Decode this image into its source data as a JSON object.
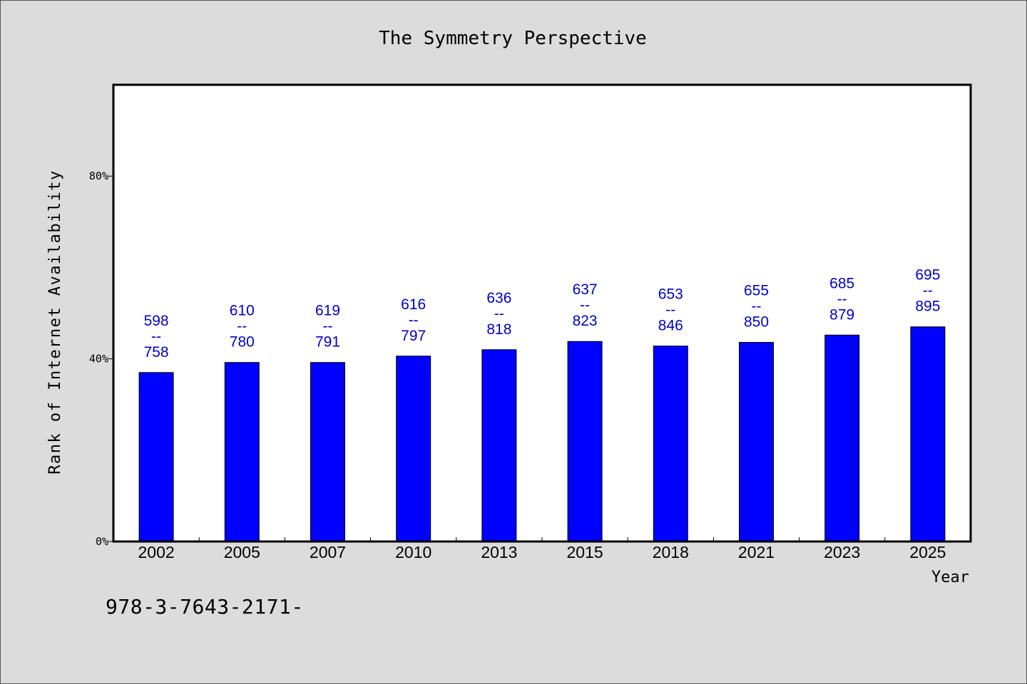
{
  "chart_data": {
    "type": "bar",
    "title": "The Symmetry Perspective",
    "xlabel": "Year",
    "ylabel": "Rank of Internet Availability",
    "ylim": [
      0,
      100
    ],
    "yticks": [
      0,
      40,
      80
    ],
    "ytick_labels": [
      "0%",
      "40%",
      "80%"
    ],
    "categories": [
      "2002",
      "2005",
      "2007",
      "2010",
      "2013",
      "2015",
      "2018",
      "2021",
      "2023",
      "2025"
    ],
    "values": [
      37,
      39.2,
      39.2,
      40.6,
      42,
      43.8,
      42.8,
      43.6,
      45.2,
      47
    ],
    "label_low": [
      "598",
      "610",
      "619",
      "616",
      "636",
      "637",
      "653",
      "655",
      "685",
      "695"
    ],
    "label_sep": "--",
    "label_high": [
      "758",
      "780",
      "791",
      "797",
      "818",
      "823",
      "846",
      "850",
      "879",
      "895"
    ],
    "grid": false,
    "bar_color": "#0000ff",
    "label_color": "#0000cc"
  },
  "footer": {
    "code": "978-3-7643-2171-"
  }
}
